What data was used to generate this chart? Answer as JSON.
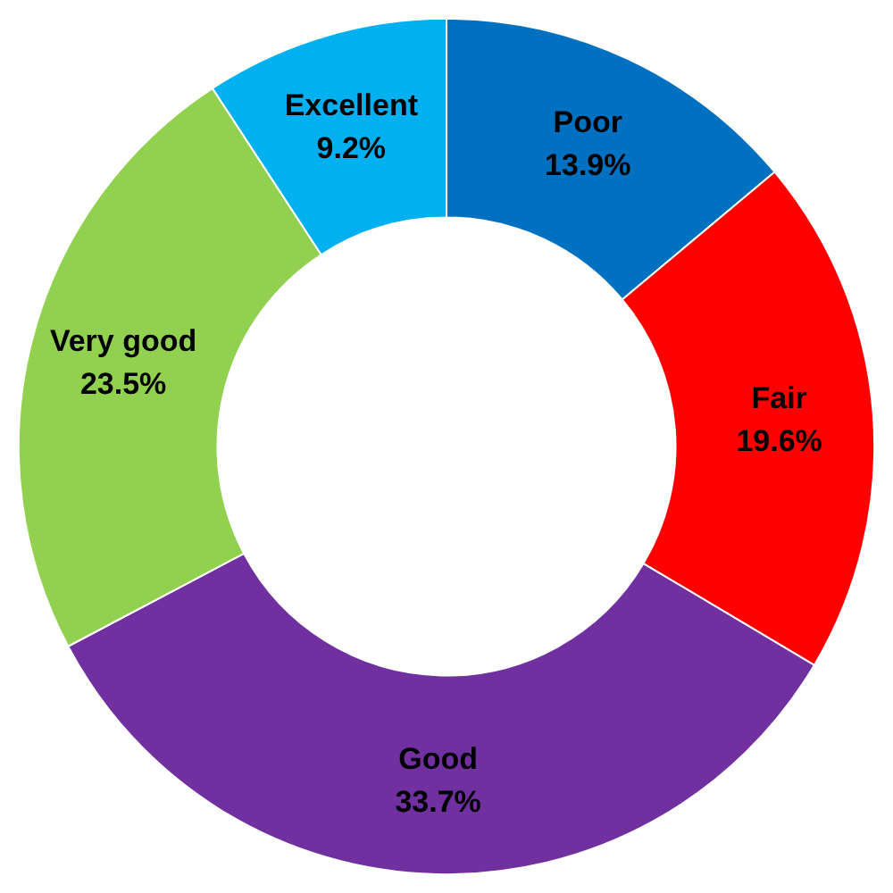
{
  "chart_data": {
    "type": "donut",
    "categories": [
      "Poor",
      "Fair",
      "Good",
      "Very good",
      "Excellent"
    ],
    "values": [
      13.9,
      19.6,
      33.7,
      23.5,
      9.2
    ],
    "colors": [
      "#0070c0",
      "#ff0000",
      "#7030a0",
      "#92d050",
      "#00b0f0"
    ],
    "value_labels": [
      "13.9%",
      "19.6%",
      "33.7%",
      "23.5%",
      "9.2%"
    ],
    "legend": false
  }
}
